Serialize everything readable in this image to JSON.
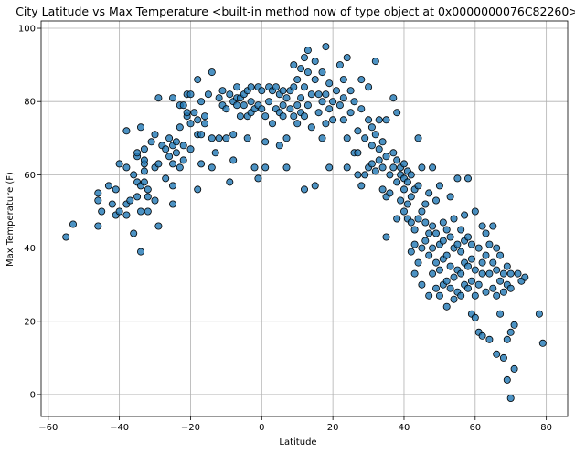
{
  "chart_data": {
    "type": "scatter",
    "title": "City Latitude vs Max Temperature <built-in method now of type object at 0x0000000076C82260>",
    "xlabel": "Latitude",
    "ylabel": "Max Temperature (F)",
    "xlim": [
      -62,
      86
    ],
    "ylim": [
      -6,
      102
    ],
    "xticks": [
      -60,
      -40,
      -20,
      0,
      20,
      40,
      60,
      80
    ],
    "yticks": [
      0,
      20,
      40,
      60,
      80,
      100
    ],
    "grid": true,
    "marker_color": "#1f77b4",
    "points": [
      [
        -55,
        43
      ],
      [
        -53,
        46.5
      ],
      [
        -46,
        46
      ],
      [
        -46,
        53
      ],
      [
        -46,
        55
      ],
      [
        -45,
        50
      ],
      [
        -43,
        57
      ],
      [
        -42,
        52
      ],
      [
        -41,
        56
      ],
      [
        -41,
        49
      ],
      [
        -40,
        50
      ],
      [
        -40,
        63
      ],
      [
        -38,
        62
      ],
      [
        -38,
        72
      ],
      [
        -38,
        52
      ],
      [
        -38,
        49
      ],
      [
        -37,
        53
      ],
      [
        -36,
        60
      ],
      [
        -36,
        44
      ],
      [
        -35,
        54
      ],
      [
        -35,
        58
      ],
      [
        -35,
        65
      ],
      [
        -35,
        66
      ],
      [
        -34,
        73
      ],
      [
        -34,
        57
      ],
      [
        -34,
        50
      ],
      [
        -34,
        39
      ],
      [
        -33,
        61
      ],
      [
        -33,
        63
      ],
      [
        -33,
        64
      ],
      [
        -33,
        67
      ],
      [
        -33,
        58
      ],
      [
        -32,
        56
      ],
      [
        -32,
        54
      ],
      [
        -32,
        50
      ],
      [
        -31,
        69
      ],
      [
        -30,
        62
      ],
      [
        -30,
        71
      ],
      [
        -30,
        53
      ],
      [
        -29,
        81
      ],
      [
        -29,
        63
      ],
      [
        -29,
        46
      ],
      [
        -28,
        68
      ],
      [
        -27,
        67
      ],
      [
        -27,
        59
      ],
      [
        -26,
        65
      ],
      [
        -26,
        70
      ],
      [
        -25,
        63
      ],
      [
        -25,
        57
      ],
      [
        -25,
        52
      ],
      [
        -25,
        68
      ],
      [
        -25,
        81
      ],
      [
        -24,
        66
      ],
      [
        -24,
        69
      ],
      [
        -23,
        73
      ],
      [
        -23,
        79
      ],
      [
        -23,
        62
      ],
      [
        -22,
        64
      ],
      [
        -22,
        68
      ],
      [
        -22,
        79
      ],
      [
        -21,
        76
      ],
      [
        -21,
        82
      ],
      [
        -21,
        77
      ],
      [
        -20,
        74
      ],
      [
        -20,
        67
      ],
      [
        -20,
        82
      ],
      [
        -19,
        77
      ],
      [
        -18,
        56
      ],
      [
        -18,
        71
      ],
      [
        -18,
        75
      ],
      [
        -18,
        86
      ],
      [
        -17,
        63
      ],
      [
        -17,
        71
      ],
      [
        -17,
        80
      ],
      [
        -16,
        76
      ],
      [
        -16,
        74
      ],
      [
        -15,
        82
      ],
      [
        -14,
        62
      ],
      [
        -14,
        70
      ],
      [
        -14,
        88
      ],
      [
        -13,
        66
      ],
      [
        -12,
        70
      ],
      [
        -12,
        81
      ],
      [
        -11,
        83
      ],
      [
        -11,
        79
      ],
      [
        -10,
        70
      ],
      [
        -10,
        78
      ],
      [
        -9,
        82
      ],
      [
        -9,
        58
      ],
      [
        -8,
        71
      ],
      [
        -8,
        64
      ],
      [
        -8,
        80
      ],
      [
        -7,
        79
      ],
      [
        -7,
        84
      ],
      [
        -7,
        81
      ],
      [
        -6,
        81
      ],
      [
        -6,
        76
      ],
      [
        -5,
        82
      ],
      [
        -5,
        79
      ],
      [
        -4,
        83
      ],
      [
        -4,
        70
      ],
      [
        -4,
        76
      ],
      [
        -3,
        77
      ],
      [
        -3,
        80
      ],
      [
        -3,
        84
      ],
      [
        -2,
        78
      ],
      [
        -2,
        62
      ],
      [
        -1,
        59
      ],
      [
        -1,
        79
      ],
      [
        -1,
        84
      ],
      [
        0,
        78
      ],
      [
        0,
        83
      ],
      [
        1,
        62
      ],
      [
        1,
        76
      ],
      [
        1,
        69
      ],
      [
        2,
        80
      ],
      [
        2,
        84
      ],
      [
        3,
        83
      ],
      [
        3,
        74
      ],
      [
        4,
        78
      ],
      [
        4,
        84
      ],
      [
        5,
        68
      ],
      [
        5,
        77
      ],
      [
        5,
        82
      ],
      [
        6,
        76
      ],
      [
        6,
        79
      ],
      [
        6,
        83
      ],
      [
        7,
        62
      ],
      [
        7,
        70
      ],
      [
        7,
        81
      ],
      [
        8,
        78
      ],
      [
        8,
        83
      ],
      [
        9,
        76
      ],
      [
        9,
        84
      ],
      [
        9,
        90
      ],
      [
        10,
        74
      ],
      [
        10,
        79
      ],
      [
        10,
        86
      ],
      [
        11,
        77
      ],
      [
        11,
        81
      ],
      [
        11,
        89
      ],
      [
        12,
        76
      ],
      [
        12,
        84
      ],
      [
        12,
        92
      ],
      [
        12,
        56
      ],
      [
        13,
        79
      ],
      [
        13,
        88
      ],
      [
        13,
        94
      ],
      [
        14,
        82
      ],
      [
        14,
        73
      ],
      [
        15,
        57
      ],
      [
        15,
        86
      ],
      [
        15,
        91
      ],
      [
        16,
        77
      ],
      [
        16,
        82
      ],
      [
        17,
        70
      ],
      [
        17,
        80
      ],
      [
        17,
        88
      ],
      [
        18,
        74
      ],
      [
        18,
        82
      ],
      [
        18,
        95
      ],
      [
        19,
        62
      ],
      [
        19,
        78
      ],
      [
        19,
        85
      ],
      [
        20,
        75
      ],
      [
        20,
        80
      ],
      [
        21,
        83
      ],
      [
        22,
        79
      ],
      [
        22,
        90
      ],
      [
        23,
        75
      ],
      [
        23,
        81
      ],
      [
        23,
        86
      ],
      [
        24,
        62
      ],
      [
        24,
        70
      ],
      [
        24,
        92
      ],
      [
        25,
        77
      ],
      [
        25,
        83
      ],
      [
        26,
        66
      ],
      [
        26,
        80
      ],
      [
        27,
        60
      ],
      [
        27,
        66
      ],
      [
        27,
        72
      ],
      [
        28,
        57
      ],
      [
        28,
        78
      ],
      [
        28,
        86
      ],
      [
        29,
        60
      ],
      [
        29,
        70
      ],
      [
        30,
        62
      ],
      [
        30,
        75
      ],
      [
        30,
        84
      ],
      [
        31,
        63
      ],
      [
        31,
        68
      ],
      [
        31,
        73
      ],
      [
        32,
        61
      ],
      [
        32,
        71
      ],
      [
        32,
        91
      ],
      [
        33,
        64
      ],
      [
        33,
        67
      ],
      [
        33,
        75
      ],
      [
        34,
        56
      ],
      [
        34,
        62
      ],
      [
        34,
        69
      ],
      [
        35,
        43
      ],
      [
        35,
        54
      ],
      [
        35,
        65
      ],
      [
        35,
        75
      ],
      [
        36,
        60
      ],
      [
        36,
        55
      ],
      [
        37,
        62
      ],
      [
        37,
        66
      ],
      [
        37,
        81
      ],
      [
        38,
        48
      ],
      [
        38,
        58
      ],
      [
        38,
        64
      ],
      [
        38,
        77
      ],
      [
        39,
        53
      ],
      [
        39,
        60
      ],
      [
        39,
        62
      ],
      [
        40,
        50
      ],
      [
        40,
        56
      ],
      [
        40,
        59
      ],
      [
        40,
        63
      ],
      [
        41,
        48
      ],
      [
        41,
        52
      ],
      [
        41,
        58
      ],
      [
        41,
        61
      ],
      [
        42,
        39
      ],
      [
        42,
        47
      ],
      [
        42,
        54
      ],
      [
        42,
        60
      ],
      [
        43,
        33
      ],
      [
        43,
        41
      ],
      [
        43,
        45
      ],
      [
        43,
        56
      ],
      [
        44,
        36
      ],
      [
        44,
        48
      ],
      [
        44,
        57
      ],
      [
        44,
        70
      ],
      [
        45,
        30
      ],
      [
        45,
        40
      ],
      [
        45,
        50
      ],
      [
        45,
        62
      ],
      [
        46,
        42
      ],
      [
        46,
        47
      ],
      [
        46,
        52
      ],
      [
        47,
        27
      ],
      [
        47,
        38
      ],
      [
        47,
        44
      ],
      [
        47,
        55
      ],
      [
        48,
        33
      ],
      [
        48,
        40
      ],
      [
        48,
        46
      ],
      [
        48,
        62
      ],
      [
        49,
        29
      ],
      [
        49,
        36
      ],
      [
        49,
        44
      ],
      [
        49,
        53
      ],
      [
        50,
        27
      ],
      [
        50,
        34
      ],
      [
        50,
        41
      ],
      [
        50,
        57
      ],
      [
        51,
        30
      ],
      [
        51,
        37
      ],
      [
        51,
        42
      ],
      [
        51,
        47
      ],
      [
        52,
        24
      ],
      [
        52,
        31
      ],
      [
        52,
        38
      ],
      [
        52,
        45
      ],
      [
        53,
        29
      ],
      [
        53,
        35
      ],
      [
        53,
        43
      ],
      [
        53,
        54
      ],
      [
        54,
        26
      ],
      [
        54,
        32
      ],
      [
        54,
        40
      ],
      [
        54,
        48
      ],
      [
        55,
        28
      ],
      [
        55,
        34
      ],
      [
        55,
        41
      ],
      [
        55,
        59
      ],
      [
        56,
        27
      ],
      [
        56,
        33
      ],
      [
        56,
        39
      ],
      [
        56,
        45
      ],
      [
        57,
        30
      ],
      [
        57,
        36
      ],
      [
        57,
        42
      ],
      [
        57,
        49
      ],
      [
        58,
        29
      ],
      [
        58,
        35
      ],
      [
        58,
        43
      ],
      [
        58,
        59
      ],
      [
        59,
        22
      ],
      [
        59,
        31
      ],
      [
        59,
        37
      ],
      [
        59,
        41
      ],
      [
        60,
        21
      ],
      [
        60,
        27
      ],
      [
        60,
        34
      ],
      [
        60,
        50
      ],
      [
        61,
        17
      ],
      [
        61,
        30
      ],
      [
        61,
        40
      ],
      [
        62,
        16
      ],
      [
        62,
        33
      ],
      [
        62,
        36
      ],
      [
        62,
        46
      ],
      [
        63,
        28
      ],
      [
        63,
        38
      ],
      [
        63,
        44
      ],
      [
        64,
        15
      ],
      [
        64,
        33
      ],
      [
        64,
        41
      ],
      [
        65,
        29
      ],
      [
        65,
        36
      ],
      [
        65,
        46
      ],
      [
        66,
        11
      ],
      [
        66,
        27
      ],
      [
        66,
        34
      ],
      [
        66,
        40
      ],
      [
        67,
        22
      ],
      [
        67,
        31
      ],
      [
        67,
        38
      ],
      [
        68,
        10
      ],
      [
        68,
        28
      ],
      [
        68,
        33
      ],
      [
        69,
        4
      ],
      [
        69,
        15
      ],
      [
        69,
        30
      ],
      [
        69,
        35
      ],
      [
        70,
        -1
      ],
      [
        70,
        17
      ],
      [
        70,
        29
      ],
      [
        70,
        33
      ],
      [
        71,
        7
      ],
      [
        71,
        19
      ],
      [
        72,
        33
      ],
      [
        73,
        31
      ],
      [
        74,
        32
      ],
      [
        78,
        22
      ],
      [
        79,
        14
      ]
    ]
  }
}
